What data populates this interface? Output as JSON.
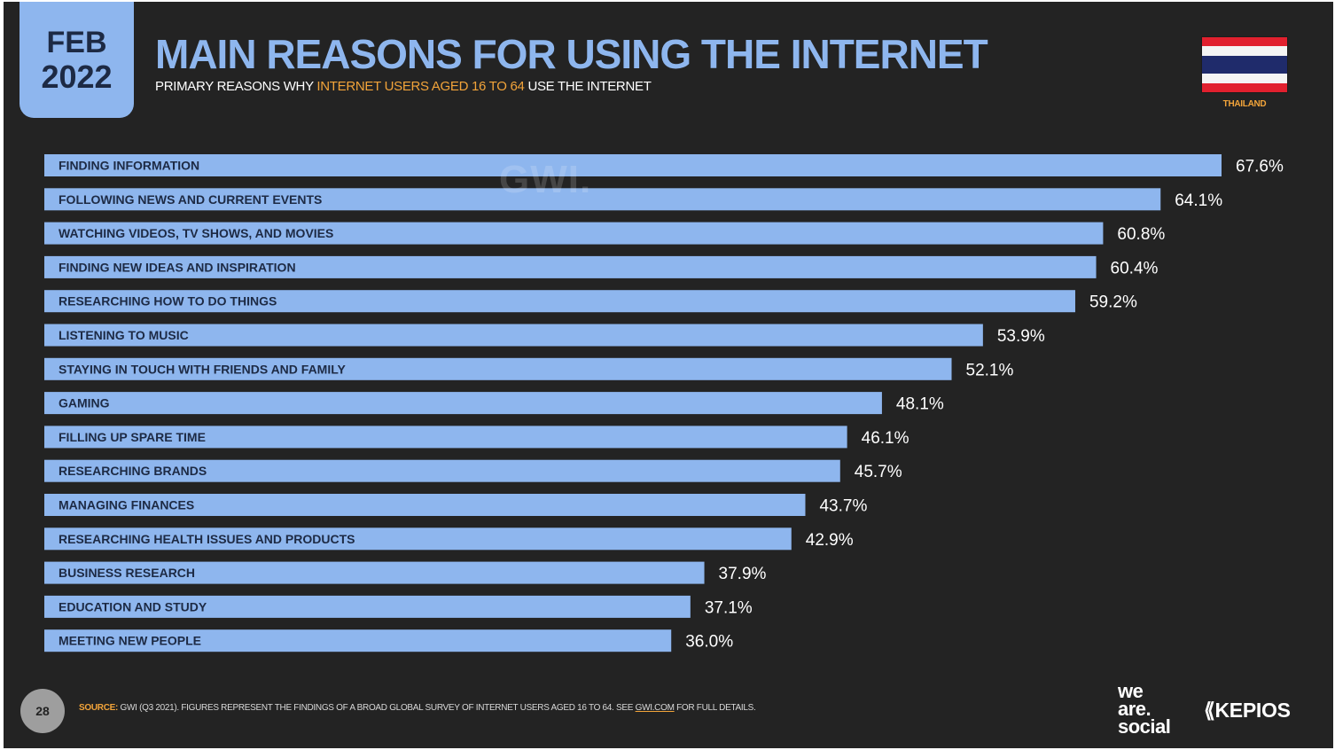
{
  "header": {
    "month": "FEB",
    "year": "2022",
    "title": "MAIN REASONS FOR USING THE INTERNET",
    "subtitle_pre": "PRIMARY REASONS WHY ",
    "subtitle_highlight": "INTERNET USERS AGED 16 TO 64",
    "subtitle_post": " USE THE INTERNET",
    "country": "THAILAND",
    "watermark": "GWI."
  },
  "chart_data": {
    "type": "bar",
    "orientation": "horizontal",
    "categories": [
      "FINDING INFORMATION",
      "FOLLOWING NEWS AND CURRENT EVENTS",
      "WATCHING VIDEOS, TV SHOWS, AND MOVIES",
      "FINDING NEW IDEAS AND INSPIRATION",
      "RESEARCHING HOW TO DO THINGS",
      "LISTENING TO MUSIC",
      "STAYING IN TOUCH WITH FRIENDS AND FAMILY",
      "GAMING",
      "FILLING UP SPARE TIME",
      "RESEARCHING BRANDS",
      "MANAGING FINANCES",
      "RESEARCHING HEALTH ISSUES AND PRODUCTS",
      "BUSINESS RESEARCH",
      "EDUCATION AND STUDY",
      "MEETING NEW PEOPLE"
    ],
    "values": [
      67.6,
      64.1,
      60.8,
      60.4,
      59.2,
      53.9,
      52.1,
      48.1,
      46.1,
      45.7,
      43.7,
      42.9,
      37.9,
      37.1,
      36.0
    ],
    "value_labels": [
      "67.6%",
      "64.1%",
      "60.8%",
      "60.4%",
      "59.2%",
      "53.9%",
      "52.1%",
      "48.1%",
      "46.1%",
      "45.7%",
      "43.7%",
      "42.9%",
      "37.9%",
      "37.1%",
      "36.0%"
    ],
    "unit": "%",
    "xlim": [
      0,
      67.6
    ],
    "grid": false,
    "legend": "none",
    "bar_color": "#8eb6ee"
  },
  "footer": {
    "page_number": "28",
    "source_label": "SOURCE:",
    "source_text": " GWI (Q3 2021). FIGURES REPRESENT THE FINDINGS OF A BROAD GLOBAL SURVEY OF INTERNET USERS AGED 16 TO 64. SEE ",
    "source_link": "GWI.COM",
    "source_tail": " FOR FULL DETAILS.",
    "brand_was_1": "we",
    "brand_was_2": "are.",
    "brand_was_3": "social",
    "brand_kepios": "KEPIOS"
  },
  "colors": {
    "background": "#232323",
    "accent_blue": "#8eb6ee",
    "accent_orange": "#f2a43a"
  }
}
